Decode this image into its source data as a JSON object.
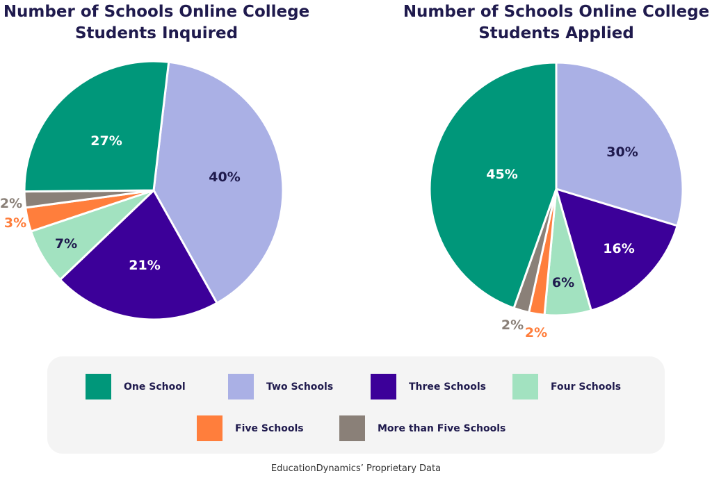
{
  "chart_data": [
    {
      "type": "pie",
      "title": "Number of Schools Online College Students Inquired",
      "slices": [
        {
          "label": "Two Schools",
          "value": 40,
          "text": "40%"
        },
        {
          "label": "Three Schools",
          "value": 21,
          "text": "21%"
        },
        {
          "label": "Four Schools",
          "value": 7,
          "text": "7%"
        },
        {
          "label": "Five Schools",
          "value": 3,
          "text": "3%"
        },
        {
          "label": "More than Five Schools",
          "value": 2,
          "text": "2%"
        },
        {
          "label": "One School",
          "value": 27,
          "text": "27%"
        }
      ]
    },
    {
      "type": "pie",
      "title": "Number of Schools Online College Students Applied",
      "slices": [
        {
          "label": "Two Schools",
          "value": 30,
          "text": "30%"
        },
        {
          "label": "Three Schools",
          "value": 16,
          "text": "16%"
        },
        {
          "label": "Four Schools",
          "value": 6,
          "text": "6%"
        },
        {
          "label": "Five Schools",
          "value": 2,
          "text": "2%"
        },
        {
          "label": "More than Five Schools",
          "value": 2,
          "text": "2%"
        },
        {
          "label": "One School",
          "value": 45,
          "text": "45%"
        }
      ]
    }
  ],
  "colors": {
    "One School": "#00977a",
    "Two Schools": "#aab0e5",
    "Three Schools": "#3c0099",
    "Four Schools": "#a2e2c0",
    "Five Schools": "#ff7e3c",
    "More than Five Schools": "#8a8078"
  },
  "legend": [
    "One School",
    "Two Schools",
    "Three Schools",
    "Four Schools",
    "Five Schools",
    "More than Five Schools"
  ],
  "footer": "EducationDynamics’ Proprietary Data"
}
